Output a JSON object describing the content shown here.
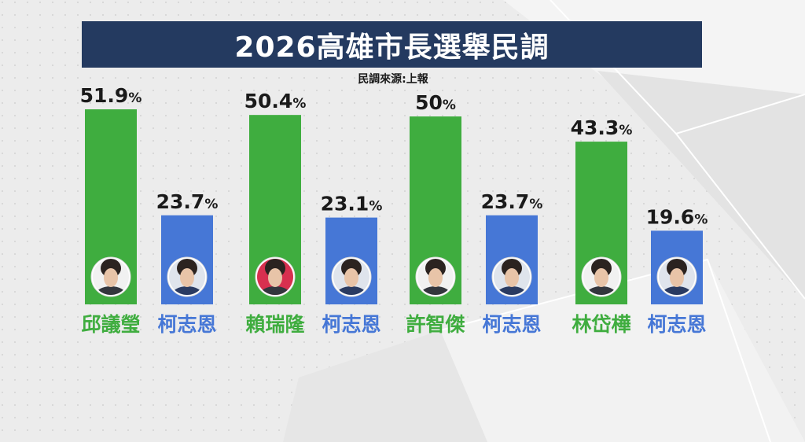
{
  "header": {
    "title": "2026高雄市長選舉民調",
    "source": "民調來源:上報"
  },
  "colors": {
    "green": "#3fad3f",
    "blue": "#4677d6",
    "title_bg": "#243a60"
  },
  "chart_data": {
    "type": "bar",
    "title": "2026高雄市長選舉民調",
    "unit": "%",
    "ylim": [
      0,
      55
    ],
    "grid": false,
    "categories": [
      "邱議瑩",
      "柯志恩",
      "賴瑞隆",
      "柯志恩",
      "許智傑",
      "柯志恩",
      "林岱樺",
      "柯志恩"
    ],
    "values": [
      51.9,
      23.7,
      50.4,
      23.1,
      50,
      23.7,
      43.3,
      19.6
    ],
    "value_labels": [
      "51.9",
      "23.7",
      "50.4",
      "23.1",
      "50",
      "23.7",
      "43.3",
      "19.6"
    ],
    "bar_colors": [
      "green",
      "blue",
      "green",
      "blue",
      "green",
      "blue",
      "green",
      "blue"
    ]
  }
}
